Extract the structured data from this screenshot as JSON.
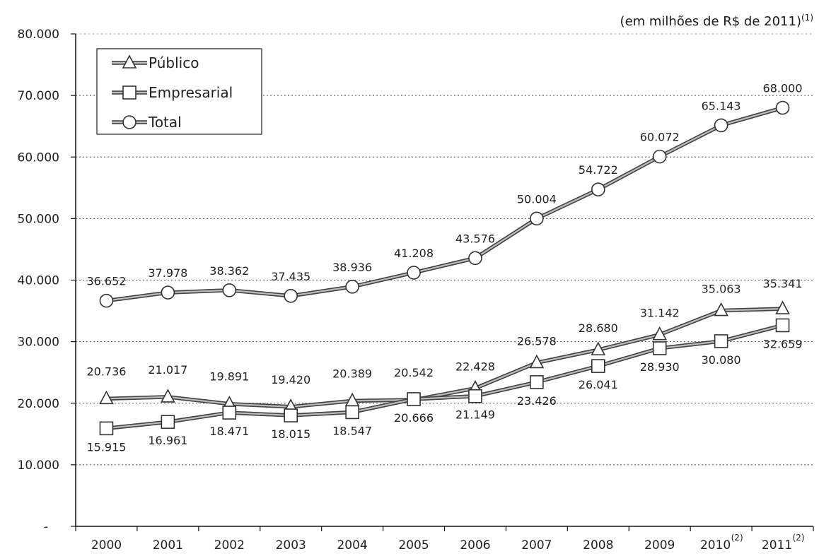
{
  "header": {
    "unit_note": "(em milhões de R$ de 2011)",
    "unit_note_sup": "(1)"
  },
  "chart_data": {
    "type": "line",
    "categories": [
      "2000",
      "2001",
      "2002",
      "2003",
      "2004",
      "2005",
      "2006",
      "2007",
      "2008",
      "2009",
      "2010",
      "2011"
    ],
    "category_refs": [
      "",
      "",
      "",
      "",
      "",
      "",
      "",
      "",
      "",
      "",
      "(2)",
      "(2)"
    ],
    "ylim": [
      0,
      80000
    ],
    "ytick_values": [
      0,
      10000,
      20000,
      30000,
      40000,
      50000,
      60000,
      70000,
      80000
    ],
    "ytick_labels": [
      "-",
      "10.000",
      "20.000",
      "30.000",
      "40.000",
      "50.000",
      "60.000",
      "70.000",
      "80.000"
    ],
    "grid": true,
    "legend_position": "top-left",
    "series": [
      {
        "name": "Público",
        "marker": "triangle",
        "color": "#777777",
        "values": [
          20736,
          21017,
          19891,
          19420,
          20389,
          20542,
          22428,
          26578,
          28680,
          31142,
          35063,
          35341
        ],
        "labels": [
          "20.736",
          "21.017",
          "19.891",
          "19.420",
          "20.389",
          "20.542",
          "22.428",
          "26.578",
          "28.680",
          "31.142",
          "35.063",
          "35.341"
        ]
      },
      {
        "name": "Empresarial",
        "marker": "square",
        "color": "#666666",
        "values": [
          15915,
          16961,
          18471,
          18015,
          18547,
          20666,
          21149,
          23426,
          26041,
          28930,
          30080,
          32659
        ],
        "labels": [
          "15.915",
          "16.961",
          "18.471",
          "18.015",
          "18.547",
          "20.666",
          "21.149",
          "23.426",
          "26.041",
          "28.930",
          "30.080",
          "32.659"
        ]
      },
      {
        "name": "Total",
        "marker": "circle",
        "color": "#777777",
        "values": [
          36652,
          37978,
          38362,
          37435,
          38936,
          41208,
          43576,
          50004,
          54722,
          60072,
          65143,
          68000
        ],
        "labels": [
          "36.652",
          "37.978",
          "38.362",
          "37.435",
          "38.936",
          "41.208",
          "43.576",
          "50.004",
          "54.722",
          "60.072",
          "65.143",
          "68.000"
        ]
      }
    ]
  }
}
